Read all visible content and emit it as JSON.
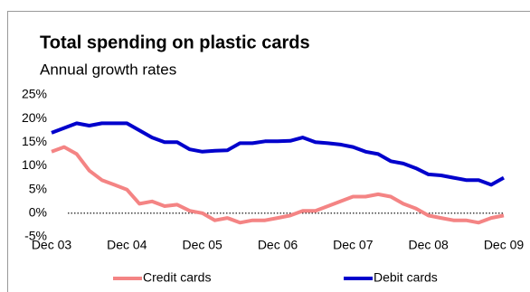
{
  "chart_data": {
    "type": "line",
    "title": "Total spending on plastic cards",
    "subtitle": "Annual growth rates",
    "x": [
      "2003-12",
      "2004-02",
      "2004-04",
      "2004-06",
      "2004-08",
      "2004-10",
      "2004-12",
      "2005-02",
      "2005-04",
      "2005-06",
      "2005-08",
      "2005-10",
      "2005-12",
      "2006-02",
      "2006-04",
      "2006-06",
      "2006-08",
      "2006-10",
      "2006-12",
      "2007-02",
      "2007-04",
      "2007-06",
      "2007-08",
      "2007-10",
      "2007-12",
      "2008-02",
      "2008-04",
      "2008-06",
      "2008-08",
      "2008-10",
      "2008-12",
      "2009-02",
      "2009-04",
      "2009-06",
      "2009-08",
      "2009-10",
      "2009-12"
    ],
    "series": [
      {
        "name": "Credit cards",
        "color": "#f48484",
        "values": [
          13,
          14,
          12.5,
          9,
          7,
          6,
          5,
          2,
          2.5,
          1.5,
          1.8,
          0.5,
          0,
          -1.5,
          -1,
          -2,
          -1.5,
          -1.5,
          -1,
          -0.5,
          0.5,
          0.5,
          1.5,
          2.5,
          3.5,
          3.5,
          4,
          3.5,
          2,
          1,
          -0.5,
          -1,
          -1.5,
          -1.5,
          -2,
          -1,
          -0.5
        ]
      },
      {
        "name": "Debit cards",
        "color": "#0000cc",
        "values": [
          17,
          18,
          19,
          18.5,
          19,
          19,
          19,
          17.5,
          16,
          15,
          15,
          13.5,
          13,
          13.2,
          13.3,
          14.8,
          14.8,
          15.2,
          15.2,
          15.3,
          16,
          15,
          14.8,
          14.5,
          14,
          13,
          12.5,
          11,
          10.5,
          9.5,
          8.2,
          8,
          7.5,
          7,
          7,
          6,
          7.5
        ]
      }
    ],
    "xlim": [
      "2003-12",
      "2009-12"
    ],
    "xticks": [
      {
        "value": "2003-12",
        "label": "Dec 03"
      },
      {
        "value": "2004-12",
        "label": "Dec 04"
      },
      {
        "value": "2005-12",
        "label": "Dec 05"
      },
      {
        "value": "2006-12",
        "label": "Dec 06"
      },
      {
        "value": "2007-12",
        "label": "Dec 07"
      },
      {
        "value": "2008-12",
        "label": "Dec 08"
      },
      {
        "value": "2009-12",
        "label": "Dec 09"
      }
    ],
    "ylim": [
      -5,
      25
    ],
    "yticks": [
      {
        "value": -5,
        "label": "-5%"
      },
      {
        "value": 0,
        "label": "0%"
      },
      {
        "value": 5,
        "label": "5%"
      },
      {
        "value": 10,
        "label": "10%"
      },
      {
        "value": 15,
        "label": "15%"
      },
      {
        "value": 20,
        "label": "20%"
      },
      {
        "value": 25,
        "label": "25%"
      }
    ],
    "zero_line": true,
    "legend": "bottom"
  }
}
